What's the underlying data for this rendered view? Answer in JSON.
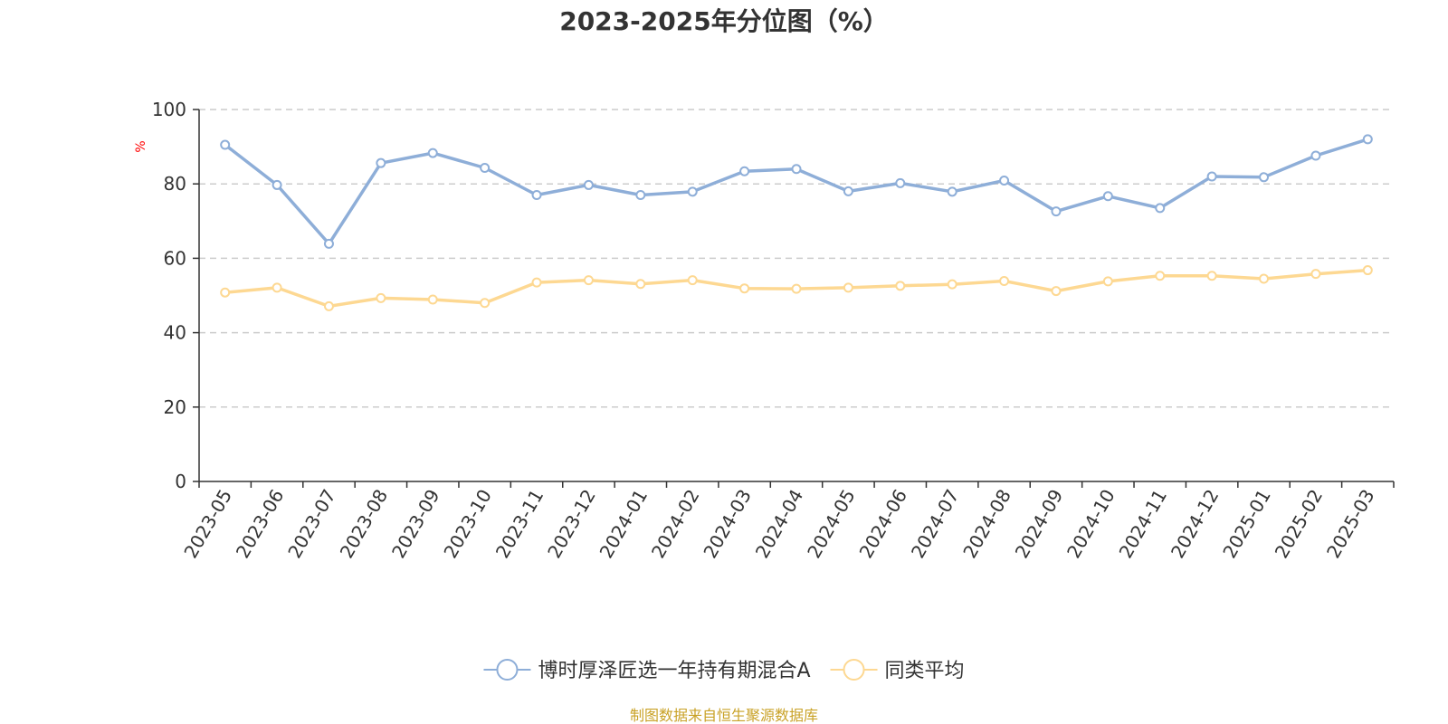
{
  "chart_data": {
    "type": "line",
    "title": "2023-2025年分位图（%）",
    "ylabel": "%",
    "ylim": [
      0,
      100
    ],
    "yticks": [
      0,
      20,
      40,
      60,
      80,
      100
    ],
    "grid": true,
    "legend_position": "bottom",
    "categories": [
      "2023-05",
      "2023-06",
      "2023-07",
      "2023-08",
      "2023-09",
      "2023-10",
      "2023-11",
      "2023-12",
      "2024-01",
      "2024-02",
      "2024-03",
      "2024-04",
      "2024-05",
      "2024-06",
      "2024-07",
      "2024-08",
      "2024-09",
      "2024-10",
      "2024-11",
      "2024-12",
      "2025-01",
      "2025-02",
      "2025-03"
    ],
    "series": [
      {
        "name": "博时厚泽匠选一年持有期混合A",
        "color": "#8eaed8",
        "values": [
          90.5,
          79.7,
          63.9,
          85.6,
          88.3,
          84.3,
          77.0,
          79.7,
          77.0,
          77.9,
          83.4,
          84.0,
          78.0,
          80.2,
          77.9,
          80.9,
          72.6,
          76.7,
          73.5,
          82.0,
          81.8,
          87.6,
          92.0
        ]
      },
      {
        "name": "同类平均",
        "color": "#fdd892",
        "values": [
          50.8,
          52.1,
          47.1,
          49.3,
          48.9,
          48.0,
          53.5,
          54.1,
          53.1,
          54.1,
          51.9,
          51.8,
          52.1,
          52.6,
          53.0,
          53.9,
          51.2,
          53.8,
          55.3,
          55.3,
          54.5,
          55.8,
          56.8
        ]
      }
    ]
  },
  "axis_color": "#333333",
  "grid_color": "#cccccc",
  "ylabel_color": "#ff0000",
  "source_text": "制图数据来自恒生聚源数据库",
  "source_color": "#c9a227"
}
